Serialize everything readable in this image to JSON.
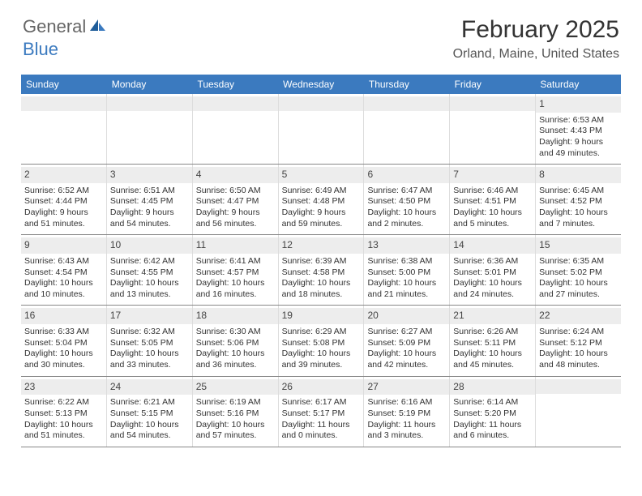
{
  "logo": {
    "word1": "General",
    "word2": "Blue"
  },
  "header": {
    "month_title": "February 2025",
    "location": "Orland, Maine, United States"
  },
  "colors": {
    "header_bg": "#3b7abf",
    "header_text": "#ffffff",
    "daynum_bg": "#ededed",
    "cell_border": "#dddddd",
    "week_border": "#888888",
    "text": "#333333",
    "location_text": "#555555"
  },
  "fonts": {
    "title_size_pt": 22,
    "location_size_pt": 12,
    "dayhead_size_pt": 9,
    "cell_size_pt": 8
  },
  "day_names": [
    "Sunday",
    "Monday",
    "Tuesday",
    "Wednesday",
    "Thursday",
    "Friday",
    "Saturday"
  ],
  "weeks": [
    [
      null,
      null,
      null,
      null,
      null,
      null,
      {
        "n": "1",
        "sunrise": "Sunrise: 6:53 AM",
        "sunset": "Sunset: 4:43 PM",
        "daylight1": "Daylight: 9 hours",
        "daylight2": "and 49 minutes."
      }
    ],
    [
      {
        "n": "2",
        "sunrise": "Sunrise: 6:52 AM",
        "sunset": "Sunset: 4:44 PM",
        "daylight1": "Daylight: 9 hours",
        "daylight2": "and 51 minutes."
      },
      {
        "n": "3",
        "sunrise": "Sunrise: 6:51 AM",
        "sunset": "Sunset: 4:45 PM",
        "daylight1": "Daylight: 9 hours",
        "daylight2": "and 54 minutes."
      },
      {
        "n": "4",
        "sunrise": "Sunrise: 6:50 AM",
        "sunset": "Sunset: 4:47 PM",
        "daylight1": "Daylight: 9 hours",
        "daylight2": "and 56 minutes."
      },
      {
        "n": "5",
        "sunrise": "Sunrise: 6:49 AM",
        "sunset": "Sunset: 4:48 PM",
        "daylight1": "Daylight: 9 hours",
        "daylight2": "and 59 minutes."
      },
      {
        "n": "6",
        "sunrise": "Sunrise: 6:47 AM",
        "sunset": "Sunset: 4:50 PM",
        "daylight1": "Daylight: 10 hours",
        "daylight2": "and 2 minutes."
      },
      {
        "n": "7",
        "sunrise": "Sunrise: 6:46 AM",
        "sunset": "Sunset: 4:51 PM",
        "daylight1": "Daylight: 10 hours",
        "daylight2": "and 5 minutes."
      },
      {
        "n": "8",
        "sunrise": "Sunrise: 6:45 AM",
        "sunset": "Sunset: 4:52 PM",
        "daylight1": "Daylight: 10 hours",
        "daylight2": "and 7 minutes."
      }
    ],
    [
      {
        "n": "9",
        "sunrise": "Sunrise: 6:43 AM",
        "sunset": "Sunset: 4:54 PM",
        "daylight1": "Daylight: 10 hours",
        "daylight2": "and 10 minutes."
      },
      {
        "n": "10",
        "sunrise": "Sunrise: 6:42 AM",
        "sunset": "Sunset: 4:55 PM",
        "daylight1": "Daylight: 10 hours",
        "daylight2": "and 13 minutes."
      },
      {
        "n": "11",
        "sunrise": "Sunrise: 6:41 AM",
        "sunset": "Sunset: 4:57 PM",
        "daylight1": "Daylight: 10 hours",
        "daylight2": "and 16 minutes."
      },
      {
        "n": "12",
        "sunrise": "Sunrise: 6:39 AM",
        "sunset": "Sunset: 4:58 PM",
        "daylight1": "Daylight: 10 hours",
        "daylight2": "and 18 minutes."
      },
      {
        "n": "13",
        "sunrise": "Sunrise: 6:38 AM",
        "sunset": "Sunset: 5:00 PM",
        "daylight1": "Daylight: 10 hours",
        "daylight2": "and 21 minutes."
      },
      {
        "n": "14",
        "sunrise": "Sunrise: 6:36 AM",
        "sunset": "Sunset: 5:01 PM",
        "daylight1": "Daylight: 10 hours",
        "daylight2": "and 24 minutes."
      },
      {
        "n": "15",
        "sunrise": "Sunrise: 6:35 AM",
        "sunset": "Sunset: 5:02 PM",
        "daylight1": "Daylight: 10 hours",
        "daylight2": "and 27 minutes."
      }
    ],
    [
      {
        "n": "16",
        "sunrise": "Sunrise: 6:33 AM",
        "sunset": "Sunset: 5:04 PM",
        "daylight1": "Daylight: 10 hours",
        "daylight2": "and 30 minutes."
      },
      {
        "n": "17",
        "sunrise": "Sunrise: 6:32 AM",
        "sunset": "Sunset: 5:05 PM",
        "daylight1": "Daylight: 10 hours",
        "daylight2": "and 33 minutes."
      },
      {
        "n": "18",
        "sunrise": "Sunrise: 6:30 AM",
        "sunset": "Sunset: 5:06 PM",
        "daylight1": "Daylight: 10 hours",
        "daylight2": "and 36 minutes."
      },
      {
        "n": "19",
        "sunrise": "Sunrise: 6:29 AM",
        "sunset": "Sunset: 5:08 PM",
        "daylight1": "Daylight: 10 hours",
        "daylight2": "and 39 minutes."
      },
      {
        "n": "20",
        "sunrise": "Sunrise: 6:27 AM",
        "sunset": "Sunset: 5:09 PM",
        "daylight1": "Daylight: 10 hours",
        "daylight2": "and 42 minutes."
      },
      {
        "n": "21",
        "sunrise": "Sunrise: 6:26 AM",
        "sunset": "Sunset: 5:11 PM",
        "daylight1": "Daylight: 10 hours",
        "daylight2": "and 45 minutes."
      },
      {
        "n": "22",
        "sunrise": "Sunrise: 6:24 AM",
        "sunset": "Sunset: 5:12 PM",
        "daylight1": "Daylight: 10 hours",
        "daylight2": "and 48 minutes."
      }
    ],
    [
      {
        "n": "23",
        "sunrise": "Sunrise: 6:22 AM",
        "sunset": "Sunset: 5:13 PM",
        "daylight1": "Daylight: 10 hours",
        "daylight2": "and 51 minutes."
      },
      {
        "n": "24",
        "sunrise": "Sunrise: 6:21 AM",
        "sunset": "Sunset: 5:15 PM",
        "daylight1": "Daylight: 10 hours",
        "daylight2": "and 54 minutes."
      },
      {
        "n": "25",
        "sunrise": "Sunrise: 6:19 AM",
        "sunset": "Sunset: 5:16 PM",
        "daylight1": "Daylight: 10 hours",
        "daylight2": "and 57 minutes."
      },
      {
        "n": "26",
        "sunrise": "Sunrise: 6:17 AM",
        "sunset": "Sunset: 5:17 PM",
        "daylight1": "Daylight: 11 hours",
        "daylight2": "and 0 minutes."
      },
      {
        "n": "27",
        "sunrise": "Sunrise: 6:16 AM",
        "sunset": "Sunset: 5:19 PM",
        "daylight1": "Daylight: 11 hours",
        "daylight2": "and 3 minutes."
      },
      {
        "n": "28",
        "sunrise": "Sunrise: 6:14 AM",
        "sunset": "Sunset: 5:20 PM",
        "daylight1": "Daylight: 11 hours",
        "daylight2": "and 6 minutes."
      },
      null
    ]
  ]
}
